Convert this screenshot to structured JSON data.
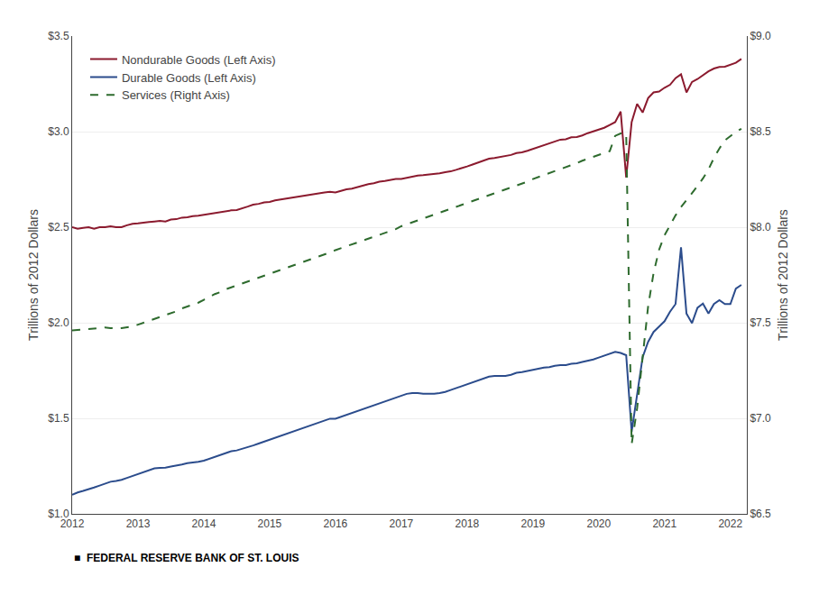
{
  "chart_data": {
    "type": "line",
    "ylabel": "Trillions of 2012 Dollars",
    "y2label": "Trillions of 2012 Dollars",
    "annotations": [
      "■  FEDERAL RESERVE BANK OF ST. LOUIS"
    ],
    "xlim": [
      2012.0,
      2022.25
    ],
    "xticks": [
      2012,
      2013,
      2014,
      2015,
      2016,
      2017,
      2018,
      2019,
      2020,
      2021,
      2022
    ],
    "ylim": [
      1.0,
      3.5
    ],
    "yticks": [
      {
        "value": 1.0,
        "label": "$1.0"
      },
      {
        "value": 1.5,
        "label": "$1.5"
      },
      {
        "value": 2.0,
        "label": "$2.0"
      },
      {
        "value": 2.5,
        "label": "$2.5"
      },
      {
        "value": 3.0,
        "label": "$3.0"
      },
      {
        "value": 3.5,
        "label": "$3.5"
      }
    ],
    "y2lim": [
      6.5,
      9.0
    ],
    "y2ticks": [
      {
        "value": 6.5,
        "label": "$6.5"
      },
      {
        "value": 7.0,
        "label": "$7.0"
      },
      {
        "value": 7.5,
        "label": "$7.5"
      },
      {
        "value": 8.0,
        "label": "$8.0"
      },
      {
        "value": 8.5,
        "label": "$8.5"
      },
      {
        "value": 9.0,
        "label": "$9.0"
      }
    ],
    "grid": "y",
    "legend": "upper left",
    "x": [
      2012.0,
      2012.083,
      2012.167,
      2012.25,
      2012.333,
      2012.417,
      2012.5,
      2012.583,
      2012.667,
      2012.75,
      2012.833,
      2012.917,
      2013.0,
      2013.083,
      2013.167,
      2013.25,
      2013.333,
      2013.417,
      2013.5,
      2013.583,
      2013.667,
      2013.75,
      2013.833,
      2013.917,
      2014.0,
      2014.083,
      2014.167,
      2014.25,
      2014.333,
      2014.417,
      2014.5,
      2014.583,
      2014.667,
      2014.75,
      2014.833,
      2014.917,
      2015.0,
      2015.083,
      2015.167,
      2015.25,
      2015.333,
      2015.417,
      2015.5,
      2015.583,
      2015.667,
      2015.75,
      2015.833,
      2015.917,
      2016.0,
      2016.083,
      2016.167,
      2016.25,
      2016.333,
      2016.417,
      2016.5,
      2016.583,
      2016.667,
      2016.75,
      2016.833,
      2016.917,
      2017.0,
      2017.083,
      2017.167,
      2017.25,
      2017.333,
      2017.417,
      2017.5,
      2017.583,
      2017.667,
      2017.75,
      2017.833,
      2017.917,
      2018.0,
      2018.083,
      2018.167,
      2018.25,
      2018.333,
      2018.417,
      2018.5,
      2018.583,
      2018.667,
      2018.75,
      2018.833,
      2018.917,
      2019.0,
      2019.083,
      2019.167,
      2019.25,
      2019.333,
      2019.417,
      2019.5,
      2019.583,
      2019.667,
      2019.75,
      2019.833,
      2019.917,
      2020.0,
      2020.083,
      2020.167,
      2020.25,
      2020.333,
      2020.417,
      2020.5,
      2020.583,
      2020.667,
      2020.75,
      2020.833,
      2020.917,
      2021.0,
      2021.083,
      2021.167,
      2021.25,
      2021.333,
      2021.417,
      2021.5,
      2021.583,
      2021.667,
      2021.75,
      2021.833,
      2021.917,
      2022.0,
      2022.083,
      2022.167
    ],
    "series": [
      {
        "name": "Nondurable Goods (Left Axis)",
        "color": "#8B1A2E",
        "line_style": "solid",
        "axis": "y",
        "values": [
          2.5,
          2.492,
          2.497,
          2.5,
          2.492,
          2.5,
          2.5,
          2.505,
          2.5,
          2.5,
          2.51,
          2.518,
          2.52,
          2.522,
          2.527,
          2.53,
          2.533,
          2.53,
          2.54,
          2.542,
          2.55,
          2.552,
          2.558,
          2.56,
          2.565,
          2.568,
          2.572,
          2.578,
          2.582,
          2.588,
          2.59,
          2.598,
          2.608,
          2.618,
          2.622,
          2.63,
          2.632,
          2.64,
          2.645,
          2.65,
          2.655,
          2.66,
          2.665,
          2.668,
          2.672,
          2.678,
          2.682,
          2.685,
          2.682,
          2.69,
          2.698,
          2.702,
          2.71,
          2.718,
          2.725,
          2.73,
          2.738,
          2.742,
          2.748,
          2.752,
          2.752,
          2.758,
          2.762,
          2.77,
          2.772,
          2.775,
          2.778,
          2.782,
          2.788,
          2.792,
          2.8,
          2.808,
          2.818,
          2.828,
          2.838,
          2.848,
          2.858,
          2.862,
          2.868,
          2.872,
          2.878,
          2.888,
          2.892,
          2.9,
          2.91,
          2.92,
          2.928,
          2.938,
          2.948,
          2.958,
          2.96,
          2.97,
          2.972,
          2.98,
          2.992,
          3.002,
          3.01,
          3.02,
          3.035,
          3.05,
          3.105,
          2.76,
          3.05,
          3.145,
          3.1,
          3.175,
          3.205,
          3.21,
          3.23,
          3.245,
          3.28,
          3.3,
          3.205,
          3.26,
          3.275,
          3.295,
          3.315,
          3.33,
          3.338,
          3.34,
          3.35,
          3.36,
          3.38
        ]
      },
      {
        "name": "Durable Goods (Left Axis)",
        "color": "#2B4C8C",
        "line_style": "solid",
        "axis": "y",
        "values": [
          1.1,
          1.112,
          1.12,
          1.128,
          1.138,
          1.148,
          1.158,
          1.168,
          1.172,
          1.178,
          1.188,
          1.198,
          1.208,
          1.218,
          1.228,
          1.238,
          1.24,
          1.242,
          1.248,
          1.252,
          1.258,
          1.265,
          1.268,
          1.272,
          1.278,
          1.288,
          1.298,
          1.308,
          1.318,
          1.328,
          1.332,
          1.34,
          1.35,
          1.358,
          1.368,
          1.378,
          1.388,
          1.398,
          1.408,
          1.418,
          1.428,
          1.438,
          1.448,
          1.458,
          1.468,
          1.478,
          1.488,
          1.498,
          1.498,
          1.508,
          1.518,
          1.528,
          1.538,
          1.548,
          1.558,
          1.568,
          1.578,
          1.588,
          1.598,
          1.608,
          1.618,
          1.628,
          1.632,
          1.632,
          1.628,
          1.628,
          1.628,
          1.632,
          1.638,
          1.648,
          1.658,
          1.668,
          1.678,
          1.688,
          1.698,
          1.708,
          1.718,
          1.722,
          1.722,
          1.722,
          1.728,
          1.738,
          1.742,
          1.748,
          1.752,
          1.758,
          1.765,
          1.768,
          1.775,
          1.778,
          1.778,
          1.785,
          1.788,
          1.795,
          1.8,
          1.808,
          1.818,
          1.828,
          1.838,
          1.848,
          1.842,
          1.83,
          1.43,
          1.62,
          1.82,
          1.9,
          1.952,
          1.98,
          2.008,
          2.058,
          2.098,
          2.395,
          2.048,
          1.998,
          2.078,
          2.1,
          2.048,
          2.098,
          2.118,
          2.098,
          2.098,
          2.178,
          2.198
        ]
      },
      {
        "name": "Services (Right Axis)",
        "color": "#2E6B2E",
        "line_style": "dashed",
        "axis": "y2",
        "values": [
          7.46,
          7.462,
          7.465,
          7.468,
          7.47,
          7.472,
          7.475,
          7.472,
          7.47,
          7.472,
          7.475,
          7.48,
          7.49,
          7.5,
          7.51,
          7.52,
          7.53,
          7.54,
          7.55,
          7.56,
          7.575,
          7.585,
          7.595,
          7.605,
          7.62,
          7.635,
          7.65,
          7.66,
          7.675,
          7.685,
          7.695,
          7.705,
          7.715,
          7.725,
          7.735,
          7.745,
          7.758,
          7.768,
          7.778,
          7.788,
          7.798,
          7.808,
          7.818,
          7.828,
          7.838,
          7.848,
          7.858,
          7.868,
          7.88,
          7.89,
          7.9,
          7.91,
          7.92,
          7.93,
          7.94,
          7.95,
          7.96,
          7.97,
          7.98,
          7.99,
          8.005,
          8.015,
          8.025,
          8.035,
          8.045,
          8.055,
          8.065,
          8.075,
          8.085,
          8.095,
          8.105,
          8.115,
          8.128,
          8.138,
          8.148,
          8.158,
          8.168,
          8.178,
          8.188,
          8.198,
          8.208,
          8.218,
          8.228,
          8.238,
          8.252,
          8.262,
          8.272,
          8.282,
          8.295,
          8.305,
          8.315,
          8.325,
          8.335,
          8.348,
          8.358,
          8.368,
          8.378,
          8.388,
          8.398,
          8.478,
          8.49,
          8.49,
          6.865,
          7.052,
          7.325,
          7.585,
          7.76,
          7.882,
          7.958,
          8.012,
          8.062,
          8.105,
          8.142,
          8.175,
          8.215,
          8.255,
          8.302,
          8.362,
          8.412,
          8.455,
          8.478,
          8.498,
          8.515
        ]
      }
    ]
  }
}
